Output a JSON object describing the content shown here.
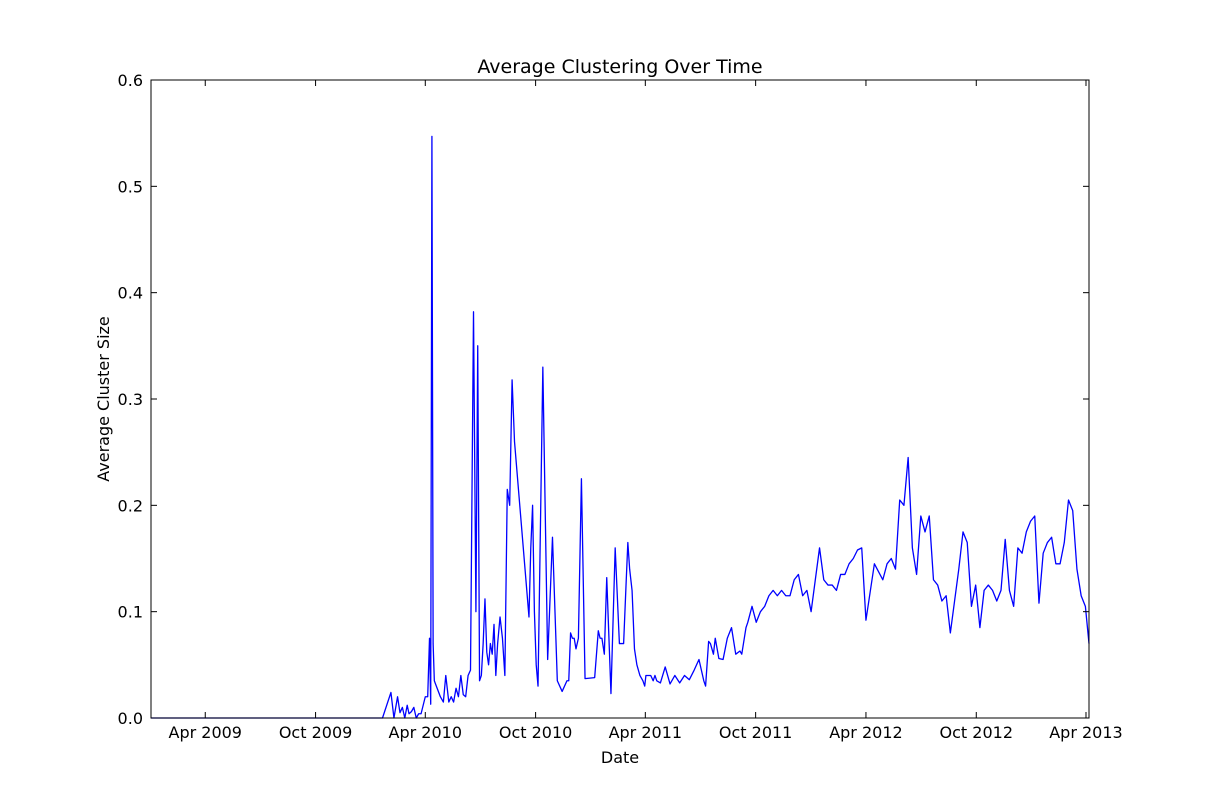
{
  "chart_data": {
    "type": "line",
    "title": "Average Clustering Over Time",
    "xlabel": "Date",
    "ylabel": "Average Cluster Size",
    "xlim": [
      "2009-01-01",
      "2013-04-06"
    ],
    "ylim": [
      0,
      0.6
    ],
    "grid": false,
    "legend": "none",
    "line_color": "#0000ff",
    "x_ticks": [
      {
        "date": "2009-04-01",
        "label": "Apr 2009"
      },
      {
        "date": "2009-10-01",
        "label": "Oct 2009"
      },
      {
        "date": "2010-04-01",
        "label": "Apr 2010"
      },
      {
        "date": "2010-10-01",
        "label": "Oct 2010"
      },
      {
        "date": "2011-04-01",
        "label": "Apr 2011"
      },
      {
        "date": "2011-10-01",
        "label": "Oct 2011"
      },
      {
        "date": "2012-04-01",
        "label": "Apr 2012"
      },
      {
        "date": "2012-10-01",
        "label": "Oct 2012"
      },
      {
        "date": "2013-04-01",
        "label": "Apr 2013"
      }
    ],
    "y_ticks": [
      {
        "value": 0.0,
        "label": "0.0"
      },
      {
        "value": 0.1,
        "label": "0.1"
      },
      {
        "value": 0.2,
        "label": "0.2"
      },
      {
        "value": 0.3,
        "label": "0.3"
      },
      {
        "value": 0.4,
        "label": "0.4"
      },
      {
        "value": 0.5,
        "label": "0.5"
      },
      {
        "value": 0.6,
        "label": "0.6"
      }
    ],
    "series": [
      {
        "x": [
          "2009-01-01",
          "2009-02-01",
          "2009-04-01",
          "2009-06-01",
          "2009-08-01",
          "2009-10-01",
          "2009-12-01",
          "2010-01-20",
          "2010-02-03",
          "2010-02-08",
          "2010-02-14",
          "2010-02-18",
          "2010-02-22",
          "2010-02-26",
          "2010-03-02",
          "2010-03-05",
          "2010-03-09",
          "2010-03-13",
          "2010-03-17",
          "2010-03-21",
          "2010-03-25",
          "2010-04-01",
          "2010-04-05",
          "2010-04-08",
          "2010-04-10",
          "2010-04-12",
          "2010-04-14",
          "2010-04-16",
          "2010-04-18",
          "2010-04-26",
          "2010-05-01",
          "2010-05-05",
          "2010-05-10",
          "2010-05-14",
          "2010-05-18",
          "2010-05-22",
          "2010-05-26",
          "2010-05-30",
          "2010-06-03",
          "2010-06-07",
          "2010-06-11",
          "2010-06-15",
          "2010-06-20",
          "2010-06-24",
          "2010-06-27",
          "2010-06-30",
          "2010-07-03",
          "2010-07-06",
          "2010-07-09",
          "2010-07-12",
          "2010-07-15",
          "2010-07-18",
          "2010-07-21",
          "2010-07-24",
          "2010-07-27",
          "2010-07-30",
          "2010-08-03",
          "2010-08-07",
          "2010-08-11",
          "2010-08-15",
          "2010-08-19",
          "2010-08-23",
          "2010-08-27",
          "2010-09-20",
          "2010-09-23",
          "2010-09-26",
          "2010-09-29",
          "2010-10-02",
          "2010-10-05",
          "2010-10-13",
          "2010-10-21",
          "2010-10-29",
          "2010-11-06",
          "2010-11-14",
          "2010-11-22",
          "2010-11-25",
          "2010-11-28",
          "2010-12-01",
          "2010-12-04",
          "2010-12-07",
          "2010-12-11",
          "2010-12-16",
          "2010-12-22",
          "2011-01-07",
          "2011-01-13",
          "2011-01-16",
          "2011-01-19",
          "2011-01-23",
          "2011-01-27",
          "2011-02-03",
          "2011-02-10",
          "2011-02-17",
          "2011-02-24",
          "2011-02-28",
          "2011-03-03",
          "2011-03-06",
          "2011-03-10",
          "2011-03-14",
          "2011-03-18",
          "2011-03-23",
          "2011-03-28",
          "2011-03-31",
          "2011-04-02",
          "2011-04-06",
          "2011-04-10",
          "2011-04-14",
          "2011-04-17",
          "2011-04-20",
          "2011-04-26",
          "2011-05-04",
          "2011-05-12",
          "2011-05-20",
          "2011-05-28",
          "2011-06-05",
          "2011-06-13",
          "2011-06-21",
          "2011-06-29",
          "2011-07-07",
          "2011-07-10",
          "2011-07-15",
          "2011-07-18",
          "2011-07-23",
          "2011-07-26",
          "2011-08-01",
          "2011-08-08",
          "2011-08-15",
          "2011-08-22",
          "2011-08-29",
          "2011-09-05",
          "2011-09-08",
          "2011-09-15",
          "2011-09-18",
          "2011-09-25",
          "2011-10-02",
          "2011-10-09",
          "2011-10-16",
          "2011-10-23",
          "2011-10-30",
          "2011-11-06",
          "2011-11-13",
          "2011-11-20",
          "2011-11-27",
          "2011-12-04",
          "2011-12-11",
          "2011-12-18",
          "2011-12-25",
          "2012-01-01",
          "2012-01-08",
          "2012-01-15",
          "2012-01-22",
          "2012-01-29",
          "2012-02-05",
          "2012-02-12",
          "2012-02-19",
          "2012-02-26",
          "2012-03-04",
          "2012-03-11",
          "2012-03-18",
          "2012-03-25",
          "2012-04-01",
          "2012-04-15",
          "2012-04-29",
          "2012-05-06",
          "2012-05-13",
          "2012-05-20",
          "2012-05-27",
          "2012-06-03",
          "2012-06-10",
          "2012-06-17",
          "2012-06-24",
          "2012-07-01",
          "2012-07-08",
          "2012-07-15",
          "2012-07-22",
          "2012-07-29",
          "2012-08-05",
          "2012-08-12",
          "2012-08-19",
          "2012-08-26",
          "2012-09-02",
          "2012-09-09",
          "2012-09-16",
          "2012-09-23",
          "2012-09-30",
          "2012-10-07",
          "2012-10-14",
          "2012-10-21",
          "2012-10-28",
          "2012-11-04",
          "2012-11-11",
          "2012-11-18",
          "2012-11-25",
          "2012-12-02",
          "2012-12-09",
          "2012-12-16",
          "2012-12-23",
          "2012-12-30",
          "2013-01-06",
          "2013-01-13",
          "2013-01-20",
          "2013-01-27",
          "2013-02-03",
          "2013-02-10",
          "2013-02-17",
          "2013-02-24",
          "2013-03-03",
          "2013-03-10",
          "2013-03-17",
          "2013-03-24",
          "2013-03-31",
          "2013-04-06"
        ],
        "y": [
          0.0,
          0.0,
          0.0,
          0.0,
          0.0,
          0.0,
          0.0,
          0.0,
          0.024,
          0.0,
          0.02,
          0.005,
          0.01,
          0.0,
          0.012,
          0.004,
          0.006,
          0.01,
          0.0,
          0.004,
          0.004,
          0.02,
          0.02,
          0.075,
          0.013,
          0.547,
          0.07,
          0.035,
          0.032,
          0.02,
          0.015,
          0.04,
          0.015,
          0.02,
          0.015,
          0.028,
          0.02,
          0.04,
          0.022,
          0.02,
          0.04,
          0.045,
          0.382,
          0.1,
          0.35,
          0.035,
          0.04,
          0.07,
          0.112,
          0.062,
          0.05,
          0.07,
          0.06,
          0.088,
          0.04,
          0.07,
          0.095,
          0.075,
          0.04,
          0.215,
          0.2,
          0.318,
          0.26,
          0.095,
          0.16,
          0.2,
          0.1,
          0.05,
          0.03,
          0.33,
          0.055,
          0.17,
          0.035,
          0.025,
          0.035,
          0.035,
          0.08,
          0.075,
          0.075,
          0.065,
          0.075,
          0.225,
          0.037,
          0.038,
          0.082,
          0.075,
          0.075,
          0.06,
          0.132,
          0.023,
          0.16,
          0.07,
          0.07,
          0.125,
          0.165,
          0.14,
          0.12,
          0.065,
          0.05,
          0.04,
          0.035,
          0.03,
          0.04,
          0.04,
          0.04,
          0.035,
          0.04,
          0.035,
          0.033,
          0.048,
          0.032,
          0.04,
          0.033,
          0.04,
          0.036,
          0.045,
          0.055,
          0.035,
          0.03,
          0.072,
          0.07,
          0.06,
          0.075,
          0.056,
          0.055,
          0.075,
          0.085,
          0.06,
          0.063,
          0.06,
          0.085,
          0.09,
          0.105,
          0.09,
          0.1,
          0.105,
          0.115,
          0.12,
          0.115,
          0.12,
          0.115,
          0.115,
          0.13,
          0.135,
          0.115,
          0.12,
          0.1,
          0.13,
          0.16,
          0.13,
          0.125,
          0.125,
          0.12,
          0.135,
          0.135,
          0.145,
          0.15,
          0.158,
          0.16,
          0.092,
          0.145,
          0.13,
          0.145,
          0.15,
          0.14,
          0.205,
          0.2,
          0.245,
          0.16,
          0.135,
          0.19,
          0.175,
          0.19,
          0.13,
          0.125,
          0.11,
          0.115,
          0.08,
          0.11,
          0.14,
          0.175,
          0.165,
          0.105,
          0.125,
          0.085,
          0.12,
          0.125,
          0.12,
          0.11,
          0.12,
          0.168,
          0.12,
          0.105,
          0.16,
          0.155,
          0.175,
          0.185,
          0.19,
          0.108,
          0.155,
          0.165,
          0.17,
          0.145,
          0.145,
          0.165,
          0.205,
          0.195,
          0.14,
          0.115,
          0.105,
          0.07
        ]
      }
    ]
  }
}
